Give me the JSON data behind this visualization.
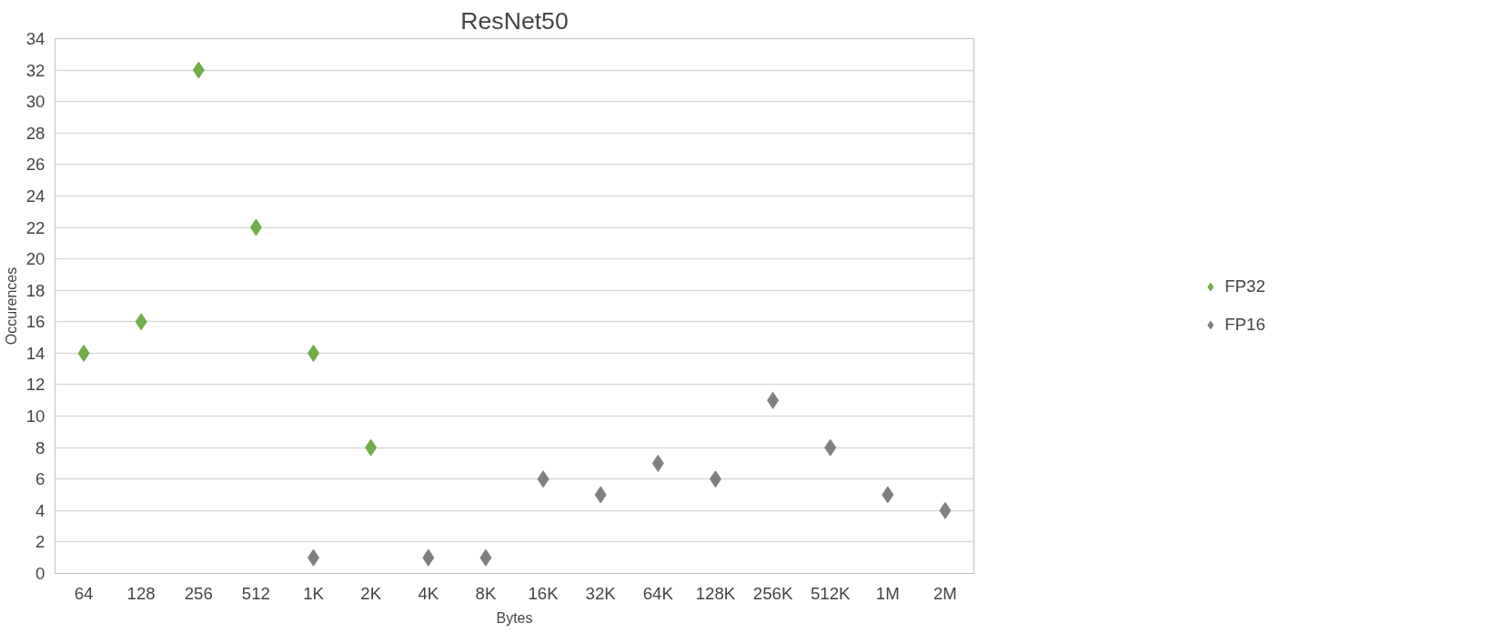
{
  "chart_data": {
    "type": "scatter",
    "title": "ResNet50",
    "xlabel": "Bytes",
    "ylabel": "Occurences",
    "categories": [
      "64",
      "128",
      "256",
      "512",
      "1K",
      "2K",
      "4K",
      "8K",
      "16K",
      "32K",
      "64K",
      "128K",
      "256K",
      "512K",
      "1M",
      "2M"
    ],
    "series": [
      {
        "name": "FP32",
        "color": "#70ad47",
        "values": [
          14,
          16,
          32,
          22,
          14,
          8,
          null,
          null,
          null,
          null,
          null,
          null,
          null,
          null,
          null,
          null
        ]
      },
      {
        "name": "FP16",
        "color": "#7f7f7f",
        "values": [
          null,
          null,
          null,
          null,
          1,
          null,
          1,
          1,
          6,
          5,
          7,
          6,
          11,
          8,
          5,
          4
        ]
      }
    ],
    "ylim": [
      0,
      34
    ],
    "yticks": [
      0,
      2,
      4,
      6,
      8,
      10,
      12,
      14,
      16,
      18,
      20,
      22,
      24,
      26,
      28,
      30,
      32,
      34
    ],
    "grid": "y",
    "legend": "right",
    "marker": "diamond"
  }
}
